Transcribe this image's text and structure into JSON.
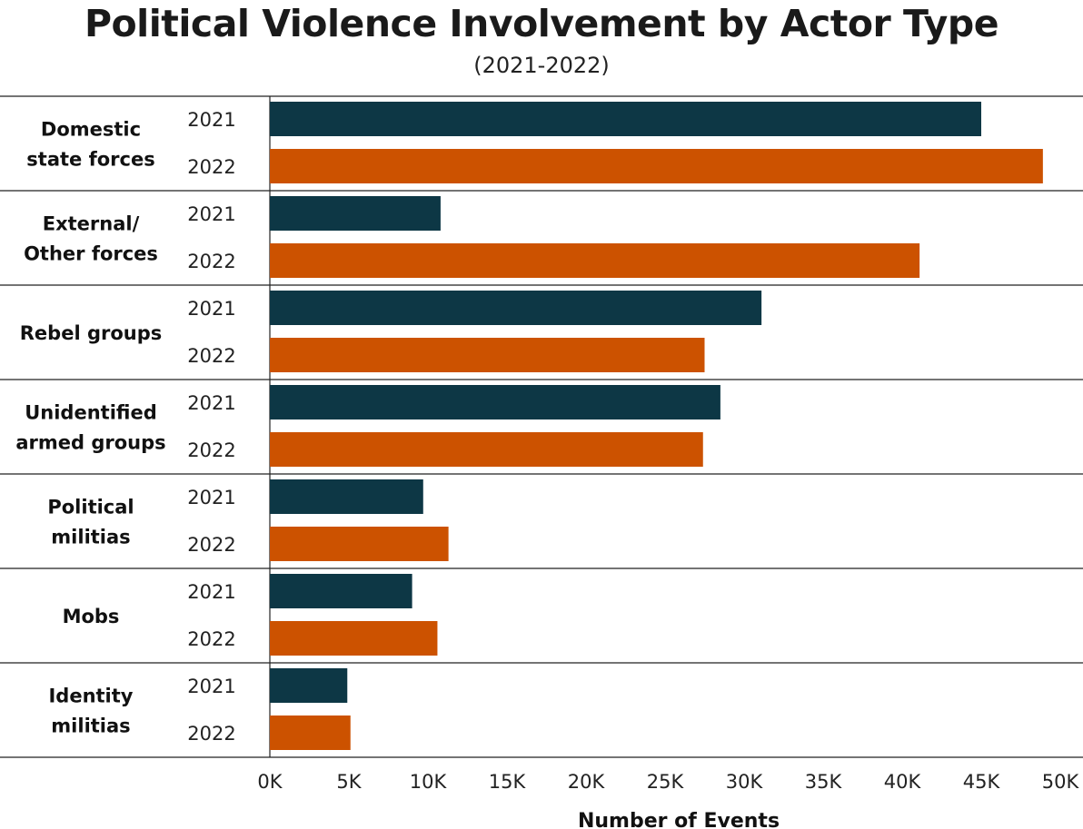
{
  "chart_data": {
    "type": "bar",
    "orientation": "horizontal",
    "title": "Political Violence Involvement by Actor Type",
    "subtitle": "(2021-2022)",
    "xlabel": "Number of Events",
    "xlim": [
      0,
      50000
    ],
    "xticks": [
      {
        "value": 0,
        "label": "0K"
      },
      {
        "value": 5000,
        "label": "5K"
      },
      {
        "value": 10000,
        "label": "10K"
      },
      {
        "value": 15000,
        "label": "15K"
      },
      {
        "value": 20000,
        "label": "20K"
      },
      {
        "value": 25000,
        "label": "25K"
      },
      {
        "value": 30000,
        "label": "30K"
      },
      {
        "value": 35000,
        "label": "35K"
      },
      {
        "value": 40000,
        "label": "40K"
      },
      {
        "value": 45000,
        "label": "45K"
      },
      {
        "value": 50000,
        "label": "50K"
      }
    ],
    "categories": [
      {
        "label_lines": [
          "Domestic",
          "state forces"
        ]
      },
      {
        "label_lines": [
          "External/",
          "Other forces"
        ]
      },
      {
        "label_lines": [
          "Rebel groups"
        ]
      },
      {
        "label_lines": [
          "Unidentified",
          "armed groups"
        ]
      },
      {
        "label_lines": [
          "Political",
          "militias"
        ]
      },
      {
        "label_lines": [
          "Mobs"
        ]
      },
      {
        "label_lines": [
          "Identity",
          "militias"
        ]
      }
    ],
    "series": [
      {
        "year": "2021",
        "color": "#0d3745",
        "values": [
          45000,
          10800,
          31100,
          28500,
          9700,
          9000,
          4900
        ]
      },
      {
        "year": "2022",
        "color": "#cc5200",
        "values": [
          48900,
          41100,
          27500,
          27400,
          11300,
          10600,
          5100
        ]
      }
    ]
  }
}
